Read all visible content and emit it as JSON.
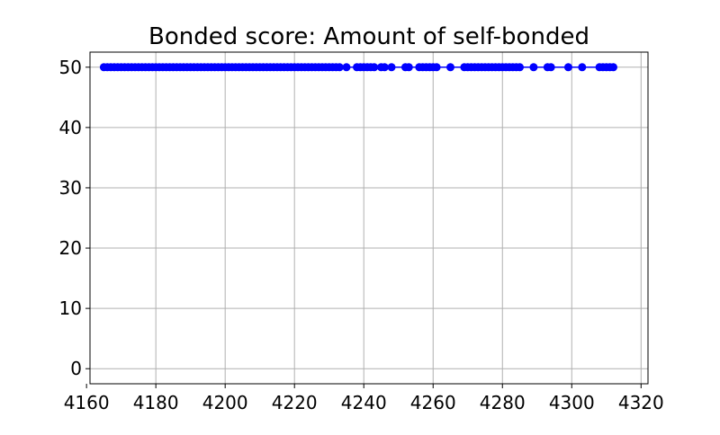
{
  "chart_data": {
    "type": "line",
    "title": "Bonded score: Amount of self-bonded",
    "xlabel": "",
    "ylabel": "",
    "xlim": [
      4161,
      4322
    ],
    "ylim": [
      -2.5,
      52.5
    ],
    "xticks": [
      4160,
      4180,
      4200,
      4220,
      4240,
      4260,
      4280,
      4300,
      4320
    ],
    "yticks": [
      0,
      10,
      20,
      30,
      40,
      50
    ],
    "grid": true,
    "legend": "none",
    "series": [
      {
        "color": "#0000ff",
        "marker": "circle",
        "x": [
          4165,
          4166,
          4167,
          4168,
          4169,
          4170,
          4171,
          4172,
          4173,
          4174,
          4175,
          4176,
          4177,
          4178,
          4179,
          4180,
          4181,
          4182,
          4183,
          4184,
          4185,
          4186,
          4187,
          4188,
          4189,
          4190,
          4191,
          4192,
          4193,
          4194,
          4195,
          4196,
          4197,
          4198,
          4199,
          4200,
          4201,
          4202,
          4203,
          4204,
          4205,
          4206,
          4207,
          4208,
          4209,
          4210,
          4211,
          4212,
          4213,
          4214,
          4215,
          4216,
          4217,
          4218,
          4219,
          4220,
          4221,
          4222,
          4223,
          4224,
          4225,
          4226,
          4227,
          4228,
          4229,
          4230,
          4231,
          4232,
          4233,
          4235,
          4238,
          4239,
          4240,
          4241,
          4242,
          4243,
          4245,
          4246,
          4248,
          4252,
          4253,
          4256,
          4257,
          4258,
          4259,
          4260,
          4261,
          4265,
          4269,
          4270,
          4271,
          4272,
          4273,
          4274,
          4275,
          4276,
          4277,
          4278,
          4279,
          4280,
          4281,
          4282,
          4283,
          4284,
          4285,
          4289,
          4293,
          4294,
          4299,
          4303,
          4308,
          4309,
          4310,
          4311,
          4312
        ],
        "y": [
          50,
          50,
          50,
          50,
          50,
          50,
          50,
          50,
          50,
          50,
          50,
          50,
          50,
          50,
          50,
          50,
          50,
          50,
          50,
          50,
          50,
          50,
          50,
          50,
          50,
          50,
          50,
          50,
          50,
          50,
          50,
          50,
          50,
          50,
          50,
          50,
          50,
          50,
          50,
          50,
          50,
          50,
          50,
          50,
          50,
          50,
          50,
          50,
          50,
          50,
          50,
          50,
          50,
          50,
          50,
          50,
          50,
          50,
          50,
          50,
          50,
          50,
          50,
          50,
          50,
          50,
          50,
          50,
          50,
          50,
          50,
          50,
          50,
          50,
          50,
          50,
          50,
          50,
          50,
          50,
          50,
          50,
          50,
          50,
          50,
          50,
          50,
          50,
          50,
          50,
          50,
          50,
          50,
          50,
          50,
          50,
          50,
          50,
          50,
          50,
          50,
          50,
          50,
          50,
          50,
          50,
          50,
          50,
          50,
          50,
          50,
          50,
          50,
          50,
          50
        ]
      }
    ]
  }
}
